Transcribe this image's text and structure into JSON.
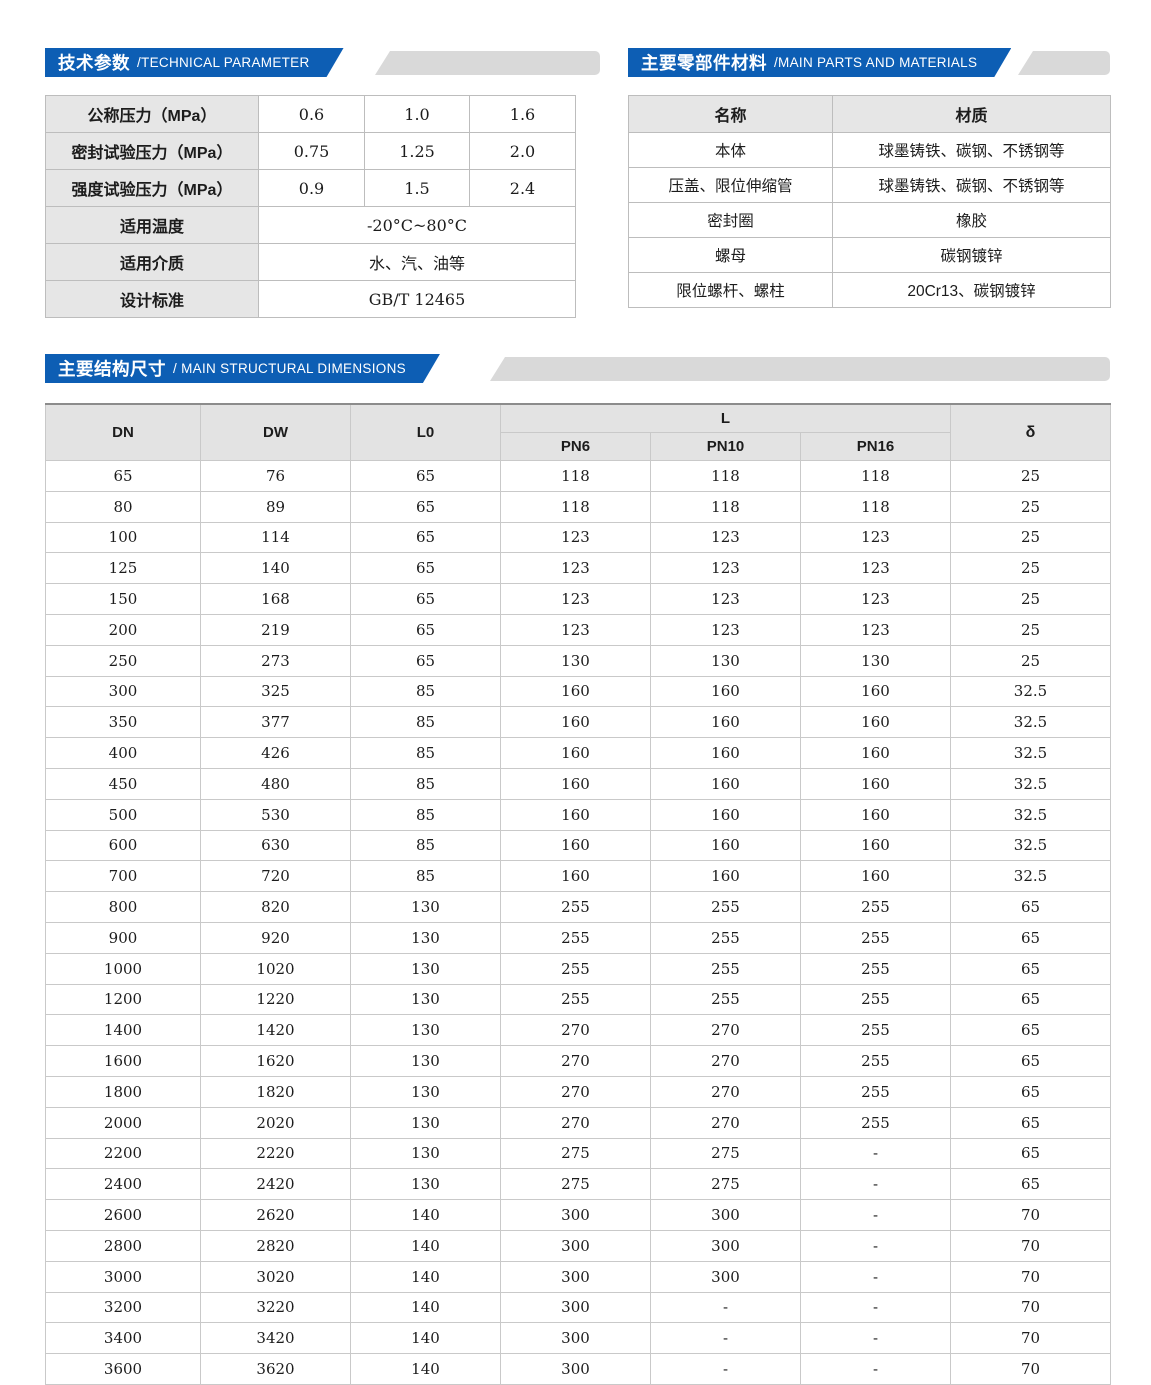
{
  "page": {
    "accent_blue": "#0d5eb4",
    "strip_gray": "#d9d9d9",
    "header_cell_gray": "#e6e6e6"
  },
  "tech": {
    "title_zh": "技术参数",
    "title_en": "/TECHNICAL PARAMETER",
    "rows": [
      {
        "label": "公称压力（MPa）",
        "values": [
          "0.6",
          "1.0",
          "1.6"
        ]
      },
      {
        "label": "密封试验压力（MPa）",
        "values": [
          "0.75",
          "1.25",
          "2.0"
        ]
      },
      {
        "label": "强度试验压力（MPa）",
        "values": [
          "0.9",
          "1.5",
          "2.4"
        ]
      },
      {
        "label": "适用温度",
        "span": "-20°C~80°C"
      },
      {
        "label": "适用介质",
        "span": "水、汽、油等"
      },
      {
        "label": "设计标准",
        "span": "GB/T 12465"
      }
    ]
  },
  "materials": {
    "title_zh": "主要零部件材料",
    "title_en": "/MAIN PARTS AND MATERIALS",
    "headers": [
      "名称",
      "材质"
    ],
    "rows": [
      [
        "本体",
        "球墨铸铁、碳钢、不锈钢等"
      ],
      [
        "压盖、限位伸缩管",
        "球墨铸铁、碳钢、不锈钢等"
      ],
      [
        "密封圈",
        "橡胶"
      ],
      [
        "螺母",
        "碳钢镀锌"
      ],
      [
        "限位螺杆、螺柱",
        "20Cr13、碳钢镀锌"
      ]
    ]
  },
  "dimensions": {
    "title_zh": "主要结构尺寸",
    "title_en": "/ MAIN STRUCTURAL DIMENSIONS",
    "headers": {
      "dn": "DN",
      "dw": "DW",
      "l0": "L0",
      "l": "L",
      "pn6": "PN6",
      "pn10": "PN10",
      "pn16": "PN16",
      "delta": "δ"
    },
    "rows": [
      [
        "65",
        "76",
        "65",
        "118",
        "118",
        "118",
        "25"
      ],
      [
        "80",
        "89",
        "65",
        "118",
        "118",
        "118",
        "25"
      ],
      [
        "100",
        "114",
        "65",
        "123",
        "123",
        "123",
        "25"
      ],
      [
        "125",
        "140",
        "65",
        "123",
        "123",
        "123",
        "25"
      ],
      [
        "150",
        "168",
        "65",
        "123",
        "123",
        "123",
        "25"
      ],
      [
        "200",
        "219",
        "65",
        "123",
        "123",
        "123",
        "25"
      ],
      [
        "250",
        "273",
        "65",
        "130",
        "130",
        "130",
        "25"
      ],
      [
        "300",
        "325",
        "85",
        "160",
        "160",
        "160",
        "32.5"
      ],
      [
        "350",
        "377",
        "85",
        "160",
        "160",
        "160",
        "32.5"
      ],
      [
        "400",
        "426",
        "85",
        "160",
        "160",
        "160",
        "32.5"
      ],
      [
        "450",
        "480",
        "85",
        "160",
        "160",
        "160",
        "32.5"
      ],
      [
        "500",
        "530",
        "85",
        "160",
        "160",
        "160",
        "32.5"
      ],
      [
        "600",
        "630",
        "85",
        "160",
        "160",
        "160",
        "32.5"
      ],
      [
        "700",
        "720",
        "85",
        "160",
        "160",
        "160",
        "32.5"
      ],
      [
        "800",
        "820",
        "130",
        "255",
        "255",
        "255",
        "65"
      ],
      [
        "900",
        "920",
        "130",
        "255",
        "255",
        "255",
        "65"
      ],
      [
        "1000",
        "1020",
        "130",
        "255",
        "255",
        "255",
        "65"
      ],
      [
        "1200",
        "1220",
        "130",
        "255",
        "255",
        "255",
        "65"
      ],
      [
        "1400",
        "1420",
        "130",
        "270",
        "270",
        "255",
        "65"
      ],
      [
        "1600",
        "1620",
        "130",
        "270",
        "270",
        "255",
        "65"
      ],
      [
        "1800",
        "1820",
        "130",
        "270",
        "270",
        "255",
        "65"
      ],
      [
        "2000",
        "2020",
        "130",
        "270",
        "270",
        "255",
        "65"
      ],
      [
        "2200",
        "2220",
        "130",
        "275",
        "275",
        "-",
        "65"
      ],
      [
        "2400",
        "2420",
        "130",
        "275",
        "275",
        "-",
        "65"
      ],
      [
        "2600",
        "2620",
        "140",
        "300",
        "300",
        "-",
        "70"
      ],
      [
        "2800",
        "2820",
        "140",
        "300",
        "300",
        "-",
        "70"
      ],
      [
        "3000",
        "3020",
        "140",
        "300",
        "300",
        "-",
        "70"
      ],
      [
        "3200",
        "3220",
        "140",
        "300",
        "-",
        "-",
        "70"
      ],
      [
        "3400",
        "3420",
        "140",
        "300",
        "-",
        "-",
        "70"
      ],
      [
        "3600",
        "3620",
        "140",
        "300",
        "-",
        "-",
        "70"
      ]
    ]
  }
}
